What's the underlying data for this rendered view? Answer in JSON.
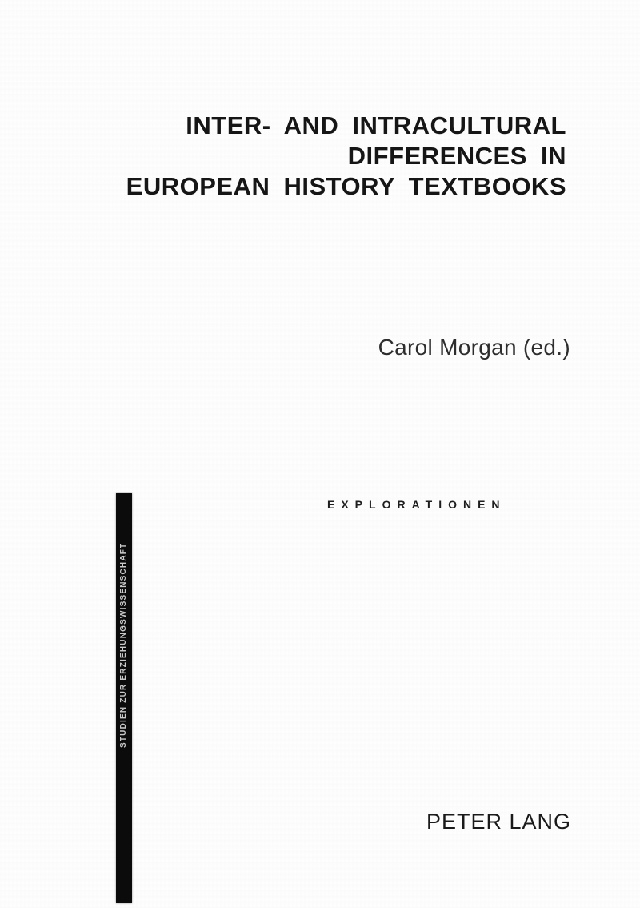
{
  "cover": {
    "title_lines": [
      "INTER- AND INTRACULTURAL",
      "DIFFERENCES IN",
      "EUROPEAN HISTORY TEXTBOOKS"
    ],
    "editor": "Carol Morgan (ed.)",
    "series_name": "EXPLORATIONEN",
    "spine_text": "STUDIEN ZUR ERZIEHUNGSWISSENSCHAFT",
    "publisher": "PETER LANG",
    "colors": {
      "ink": "#161616",
      "spine_bar": "#0b0b0b",
      "spine_text": "#c9c9c9",
      "background": "#fefefe"
    }
  }
}
